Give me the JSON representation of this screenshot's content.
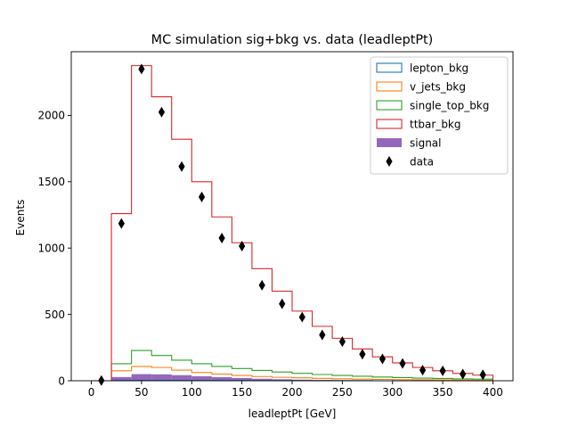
{
  "chart_data": {
    "type": "bar",
    "title": "MC simulation sig+bkg vs. data (leadleptPt)",
    "xlabel": "leadleptPt [GeV]",
    "ylabel": "Events",
    "xlim": [
      -20,
      420
    ],
    "ylim": [
      0,
      2480
    ],
    "grid": false,
    "legend_position": "top-right",
    "x_ticks": [
      0,
      50,
      100,
      150,
      200,
      250,
      300,
      350,
      400
    ],
    "y_ticks": [
      0,
      500,
      1000,
      1500,
      2000
    ],
    "bin_edges": [
      0,
      20,
      40,
      60,
      80,
      100,
      120,
      140,
      160,
      180,
      200,
      220,
      240,
      260,
      280,
      300,
      320,
      340,
      360,
      380,
      400
    ],
    "series": [
      {
        "name": "lepton_bkg",
        "kind": "step",
        "color": "#1f77b4",
        "values": [
          0,
          2,
          3,
          3,
          3,
          2,
          2,
          2,
          1,
          1,
          1,
          1,
          1,
          1,
          0,
          0,
          0,
          0,
          0,
          0
        ]
      },
      {
        "name": "v_jets_bkg",
        "kind": "step",
        "color": "#ff7f0e",
        "values": [
          0,
          75,
          108,
          100,
          80,
          62,
          50,
          40,
          32,
          26,
          22,
          18,
          15,
          12,
          10,
          8,
          7,
          6,
          5,
          4
        ]
      },
      {
        "name": "single_top_bkg",
        "kind": "step",
        "color": "#2ca02c",
        "values": [
          0,
          128,
          228,
          190,
          155,
          128,
          108,
          92,
          78,
          66,
          56,
          47,
          40,
          34,
          28,
          24,
          20,
          17,
          14,
          12
        ]
      },
      {
        "name": "ttbar_bkg",
        "kind": "step",
        "color": "#d62728",
        "values": [
          0,
          1260,
          2375,
          2140,
          1820,
          1500,
          1235,
          1040,
          845,
          675,
          525,
          410,
          320,
          240,
          180,
          135,
          100,
          75,
          55,
          42
        ]
      },
      {
        "name": "signal",
        "kind": "filled",
        "color": "#9467bd",
        "values": [
          0,
          28,
          50,
          48,
          42,
          34,
          27,
          21,
          15,
          11,
          8,
          6,
          4,
          3,
          2,
          1,
          1,
          1,
          0,
          0
        ]
      },
      {
        "name": "data",
        "kind": "points",
        "color": "#000000",
        "x": [
          10,
          30,
          50,
          70,
          90,
          110,
          130,
          150,
          170,
          190,
          210,
          230,
          250,
          270,
          290,
          310,
          330,
          350,
          370,
          390
        ],
        "values": [
          2,
          1185,
          2350,
          2025,
          1615,
          1385,
          1075,
          1015,
          720,
          580,
          480,
          345,
          295,
          200,
          165,
          130,
          80,
          75,
          50,
          45
        ]
      }
    ]
  }
}
